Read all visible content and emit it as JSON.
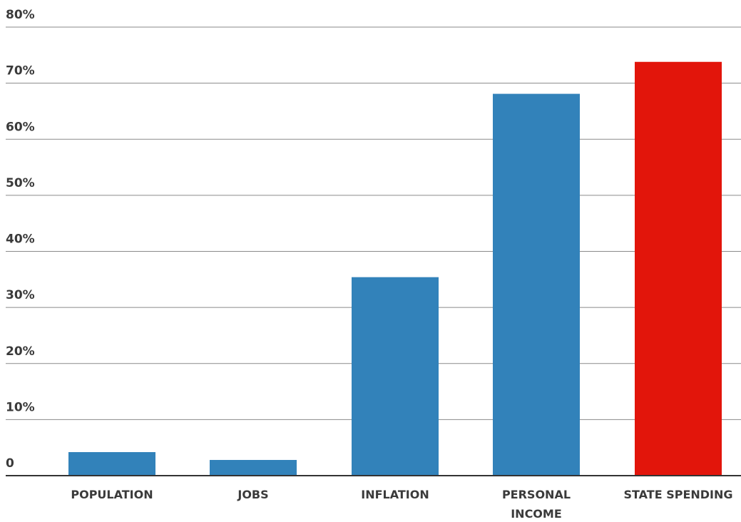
{
  "chart_data": {
    "type": "bar",
    "categories": [
      "POPULATION",
      "JOBS",
      "INFLATION",
      "PERSONAL INCOME",
      "STATE SPENDING"
    ],
    "category_lines": [
      [
        "POPULATION"
      ],
      [
        "JOBS"
      ],
      [
        "INFLATION"
      ],
      [
        "PERSONAL",
        "INCOME"
      ],
      [
        "STATE SPENDING"
      ]
    ],
    "values": [
      4.2,
      2.8,
      35.4,
      68.1,
      73.8
    ],
    "colors": [
      "#3282ba",
      "#3282ba",
      "#3282ba",
      "#3282ba",
      "#e2150b"
    ],
    "ylim": [
      0,
      80
    ],
    "yticks": [
      0,
      10,
      20,
      30,
      40,
      50,
      60,
      70,
      80
    ],
    "ytick_labels": [
      "0",
      "10%",
      "20%",
      "30%",
      "40%",
      "50%",
      "60%",
      "70%",
      "80%"
    ],
    "title": "",
    "xlabel": "",
    "ylabel": "",
    "grid": true,
    "legend": "none"
  }
}
